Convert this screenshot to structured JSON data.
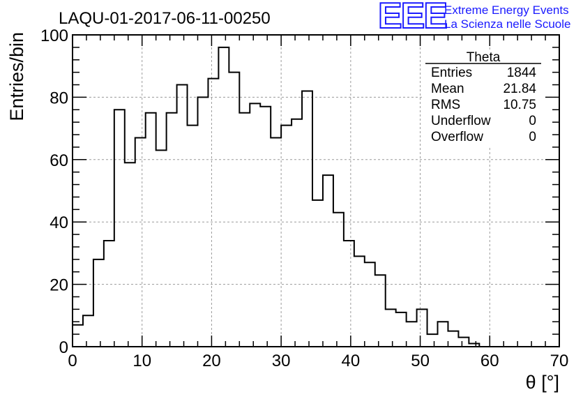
{
  "colors": {
    "line": "#000000",
    "grid": "#9a9a9a",
    "accent": "#1a1aff"
  },
  "logo": {
    "mark": "EEE",
    "line1": "Extreme Energy Events",
    "line2": "La Scienza nelle Scuole"
  },
  "stats": {
    "title": "Theta",
    "rows": [
      {
        "label": "Entries",
        "value": "1844"
      },
      {
        "label": "Mean",
        "value": "21.84"
      },
      {
        "label": "RMS",
        "value": "10.75"
      },
      {
        "label": "Underflow",
        "value": "0"
      },
      {
        "label": "Overflow",
        "value": "0"
      }
    ]
  },
  "chart_data": {
    "type": "bar",
    "style": "step-histogram",
    "title": "LAQU-01-2017-06-11-00250",
    "xlabel": "θ [°]",
    "ylabel": "Entries/bin",
    "xlim": [
      0,
      70
    ],
    "ylim": [
      0,
      100
    ],
    "bin_width": 1.5,
    "xticks": [
      0,
      10,
      20,
      30,
      40,
      50,
      60,
      70
    ],
    "yticks": [
      0,
      20,
      40,
      60,
      80,
      100
    ],
    "grid": true,
    "values": [
      7,
      10,
      28,
      34,
      76,
      59,
      67,
      75,
      63,
      75,
      84,
      71,
      80,
      86,
      96,
      88,
      75,
      78,
      77,
      67,
      71,
      73,
      82,
      47,
      55,
      43,
      34,
      29,
      27,
      23,
      12,
      11,
      8,
      12,
      4,
      8,
      5,
      3,
      1,
      0,
      0,
      0,
      0,
      0,
      0,
      0
    ]
  }
}
